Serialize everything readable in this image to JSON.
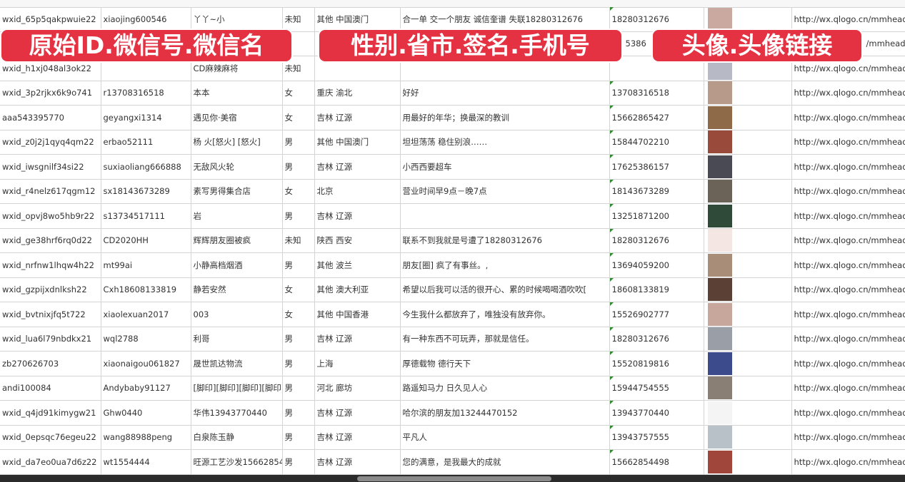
{
  "overlay_labels": [
    "原始ID.微信号.微信名",
    "性别.省市.签名.手机号",
    "头像.头像链接"
  ],
  "rows": [
    {
      "id": "wxid_65p5qakpwuie22",
      "wechat": "xiaojing600546",
      "name": "丫丫~小",
      "gender": "未知",
      "region": "其他 中国澳门",
      "signature": "合一单 交一个朋友 诚信奎谱 失联18280312676",
      "phone": "18280312676",
      "avatar_color": "#c9a9a0",
      "url": "http://wx.qlogo.cn/mmhead"
    },
    {
      "id": "",
      "wechat": "",
      "name": "",
      "gender": "",
      "region": "",
      "signature": "",
      "phone": "5386",
      "avatar_color": "#5a6fa8",
      "url": "/mmhead"
    },
    {
      "id": "wxid_h1xj048al3ok22",
      "wechat": "",
      "name": "CD麻辣麻将",
      "gender": "未知",
      "region": "",
      "signature": "",
      "phone": "",
      "avatar_color": "#b7b9c4",
      "url": "http://wx.qlogo.cn/mmhead"
    },
    {
      "id": "wxid_3p2rjkx6k9o741",
      "wechat": "r13708316518",
      "name": "本本",
      "gender": "女",
      "region": "重庆 渝北",
      "signature": "好好",
      "phone": "13708316518",
      "avatar_color": "#b79a8a",
      "url": "http://wx.qlogo.cn/mmhead"
    },
    {
      "id": "aaa543395770",
      "wechat": "geyangxi1314",
      "name": "遇见你·美宿",
      "gender": "女",
      "region": "吉林 辽源",
      "signature": "用最好的年华；换最深的教训",
      "phone": "15662865427",
      "avatar_color": "#8e6a48",
      "url": "http://wx.qlogo.cn/mmhead"
    },
    {
      "id": "wxid_z0j2j1qyq4qm22",
      "wechat": "erbao52111",
      "name": "杨 火[怒火] [怒火]",
      "gender": "男",
      "region": "其他 中国澳门",
      "signature": "坦坦荡荡 稳住别浪……",
      "phone": "15844702210",
      "avatar_color": "#9a4a3a",
      "url": "http://wx.qlogo.cn/mmhead"
    },
    {
      "id": "wxid_iwsgnilf34si22",
      "wechat": "suxiaoliang666888",
      "name": "无敌风火轮",
      "gender": "男",
      "region": "吉林 辽源",
      "signature": "小西西要超车",
      "phone": "17625386157",
      "avatar_color": "#4a4a55",
      "url": "http://wx.qlogo.cn/mmhead"
    },
    {
      "id": "wxid_r4nelz617qgm12",
      "wechat": "sx18143673289",
      "name": "素写男得集合店",
      "gender": "女",
      "region": "北京",
      "signature": "营业时间早9点－晚7点",
      "phone": "18143673289",
      "avatar_color": "#6b6258",
      "url": "http://wx.qlogo.cn/mmhead"
    },
    {
      "id": "wxid_opvj8wo5hb9r22",
      "wechat": "s13734517111",
      "name": "岩",
      "gender": "男",
      "region": "吉林 辽源",
      "signature": "",
      "phone": "13251871200",
      "avatar_color": "#2f4a38",
      "url": "http://wx.qlogo.cn/mmhead"
    },
    {
      "id": "wxid_ge38hrf6rq0d22",
      "wechat": "CD2020HH",
      "name": "辉辉朋友圈被疯",
      "gender": "未知",
      "region": "陕西 西安",
      "signature": "联系不到我就是号遭了18280312676",
      "phone": "18280312676",
      "avatar_color": "#f3e6e3",
      "url": "http://wx.qlogo.cn/mmhead"
    },
    {
      "id": "wxid_nrfnw1lhqw4h22",
      "wechat": "mt99ai",
      "name": "小静高档烟酒",
      "gender": "男",
      "region": "其他 波兰",
      "signature": "朋友[圈] 疯了有事丝。,",
      "phone": "13694059200",
      "avatar_color": "#a88d78",
      "url": "http://wx.qlogo.cn/mmhead"
    },
    {
      "id": "wxid_gzpijxdnlksh22",
      "wechat": "Cxh18608133819",
      "name": "静若安然",
      "gender": "女",
      "region": "其他 澳大利亚",
      "signature": "希望以后我可以活的很开心、累的时候喝喝酒吹吹[",
      "phone": "18608133819",
      "avatar_color": "#5b4036",
      "url": "http://wx.qlogo.cn/mmhead"
    },
    {
      "id": "wxid_bvtnixjfq5t722",
      "wechat": "xiaolexuan2017",
      "name": "003",
      "gender": "女",
      "region": "其他 中国香港",
      "signature": "今生我什么都放弃了，唯独没有放弃你。",
      "phone": "15526902777",
      "avatar_color": "#c7a79b",
      "url": "http://wx.qlogo.cn/mmhead"
    },
    {
      "id": "wxid_lua6l79nbdkx21",
      "wechat": "wql2788",
      "name": "利哥",
      "gender": "男",
      "region": "吉林 辽源",
      "signature": "有一种东西不可玩弄，那就是信任。",
      "phone": "18280312676",
      "avatar_color": "#9a9ea6",
      "url": "http://wx.qlogo.cn/mmhead"
    },
    {
      "id": "zb270626703",
      "wechat": "xiaonaigou061827",
      "name": "晟世凯达物流",
      "gender": "男",
      "region": "上海",
      "signature": "厚德载物 德行天下",
      "phone": "15520819816",
      "avatar_color": "#3c4b8c",
      "url": "http://wx.qlogo.cn/mmhead"
    },
    {
      "id": "andi100084",
      "wechat": "Andybaby91127",
      "name": "[脚印][脚印][脚印][脚印]",
      "gender": "男",
      "region": "河北 廊坊",
      "signature": "路遥知马力 日久见人心",
      "phone": "15944754555",
      "avatar_color": "#8a7f74",
      "url": "http://wx.qlogo.cn/mmhead"
    },
    {
      "id": "wxid_q4jd91kimygw21",
      "wechat": "Ghw0440",
      "name": "华伟13943770440",
      "gender": "男",
      "region": "吉林 辽源",
      "signature": "哈尔滨的朋友加13244470152",
      "phone": "13943770440",
      "avatar_color": "#f4f4f4",
      "url": "http://wx.qlogo.cn/mmhead"
    },
    {
      "id": "wxid_0epsqc76egeu22",
      "wechat": "wang88988peng",
      "name": "白泉陈玉静",
      "gender": "男",
      "region": "吉林 辽源",
      "signature": "平凡人",
      "phone": "13943757555",
      "avatar_color": "#b8c0c8",
      "url": "http://wx.qlogo.cn/mmhead"
    },
    {
      "id": "wxid_da7eo0ua7d6z22",
      "wechat": "wt1554444",
      "name": "旺源工艺沙发15662854",
      "gender": "男",
      "region": "吉林 辽源",
      "signature": "您的满意，是我最大的成就",
      "phone": "15662854498",
      "avatar_color": "#a0463a",
      "url": "http://wx.qlogo.cn/mmhead"
    }
  ]
}
